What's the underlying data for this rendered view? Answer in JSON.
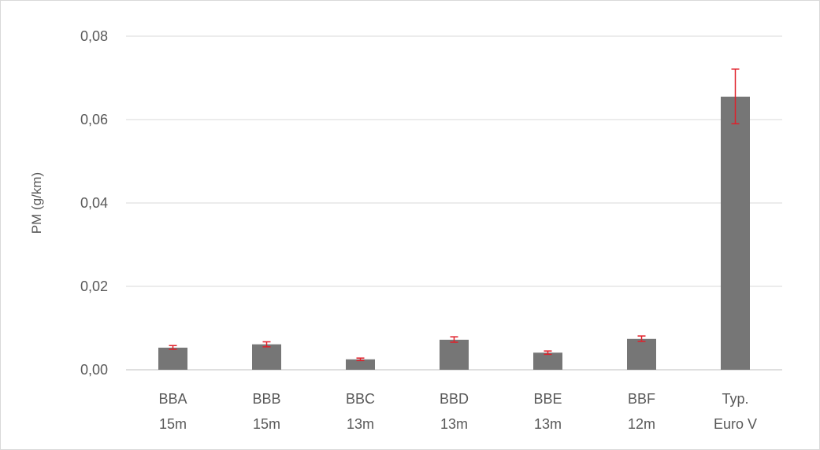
{
  "chart_data": {
    "type": "bar",
    "title": "",
    "xlabel": "",
    "ylabel": "PM (g/km)",
    "ylim": [
      0,
      0.08
    ],
    "y_ticks": [
      "0,00",
      "0,02",
      "0,04",
      "0,06",
      "0,08"
    ],
    "grid": true,
    "legend": "none",
    "categories": [
      [
        "BBA",
        "15m"
      ],
      [
        "BBB",
        "15m"
      ],
      [
        "BBC",
        "13m"
      ],
      [
        "BBD",
        "13m"
      ],
      [
        "BBE",
        "13m"
      ],
      [
        "BBF",
        "12m"
      ],
      [
        "Typ.",
        "Euro V"
      ]
    ],
    "values": [
      0.0053,
      0.0061,
      0.0025,
      0.0072,
      0.0041,
      0.0074,
      0.0655
    ],
    "error_low": [
      0.0049,
      0.0055,
      0.0022,
      0.0066,
      0.0037,
      0.0068,
      0.059
    ],
    "error_high": [
      0.0058,
      0.0067,
      0.0028,
      0.0079,
      0.0045,
      0.0081,
      0.0721
    ],
    "bar_color": "#767676",
    "error_color": "#e0202a",
    "grid_color": "#d9d9d9"
  }
}
